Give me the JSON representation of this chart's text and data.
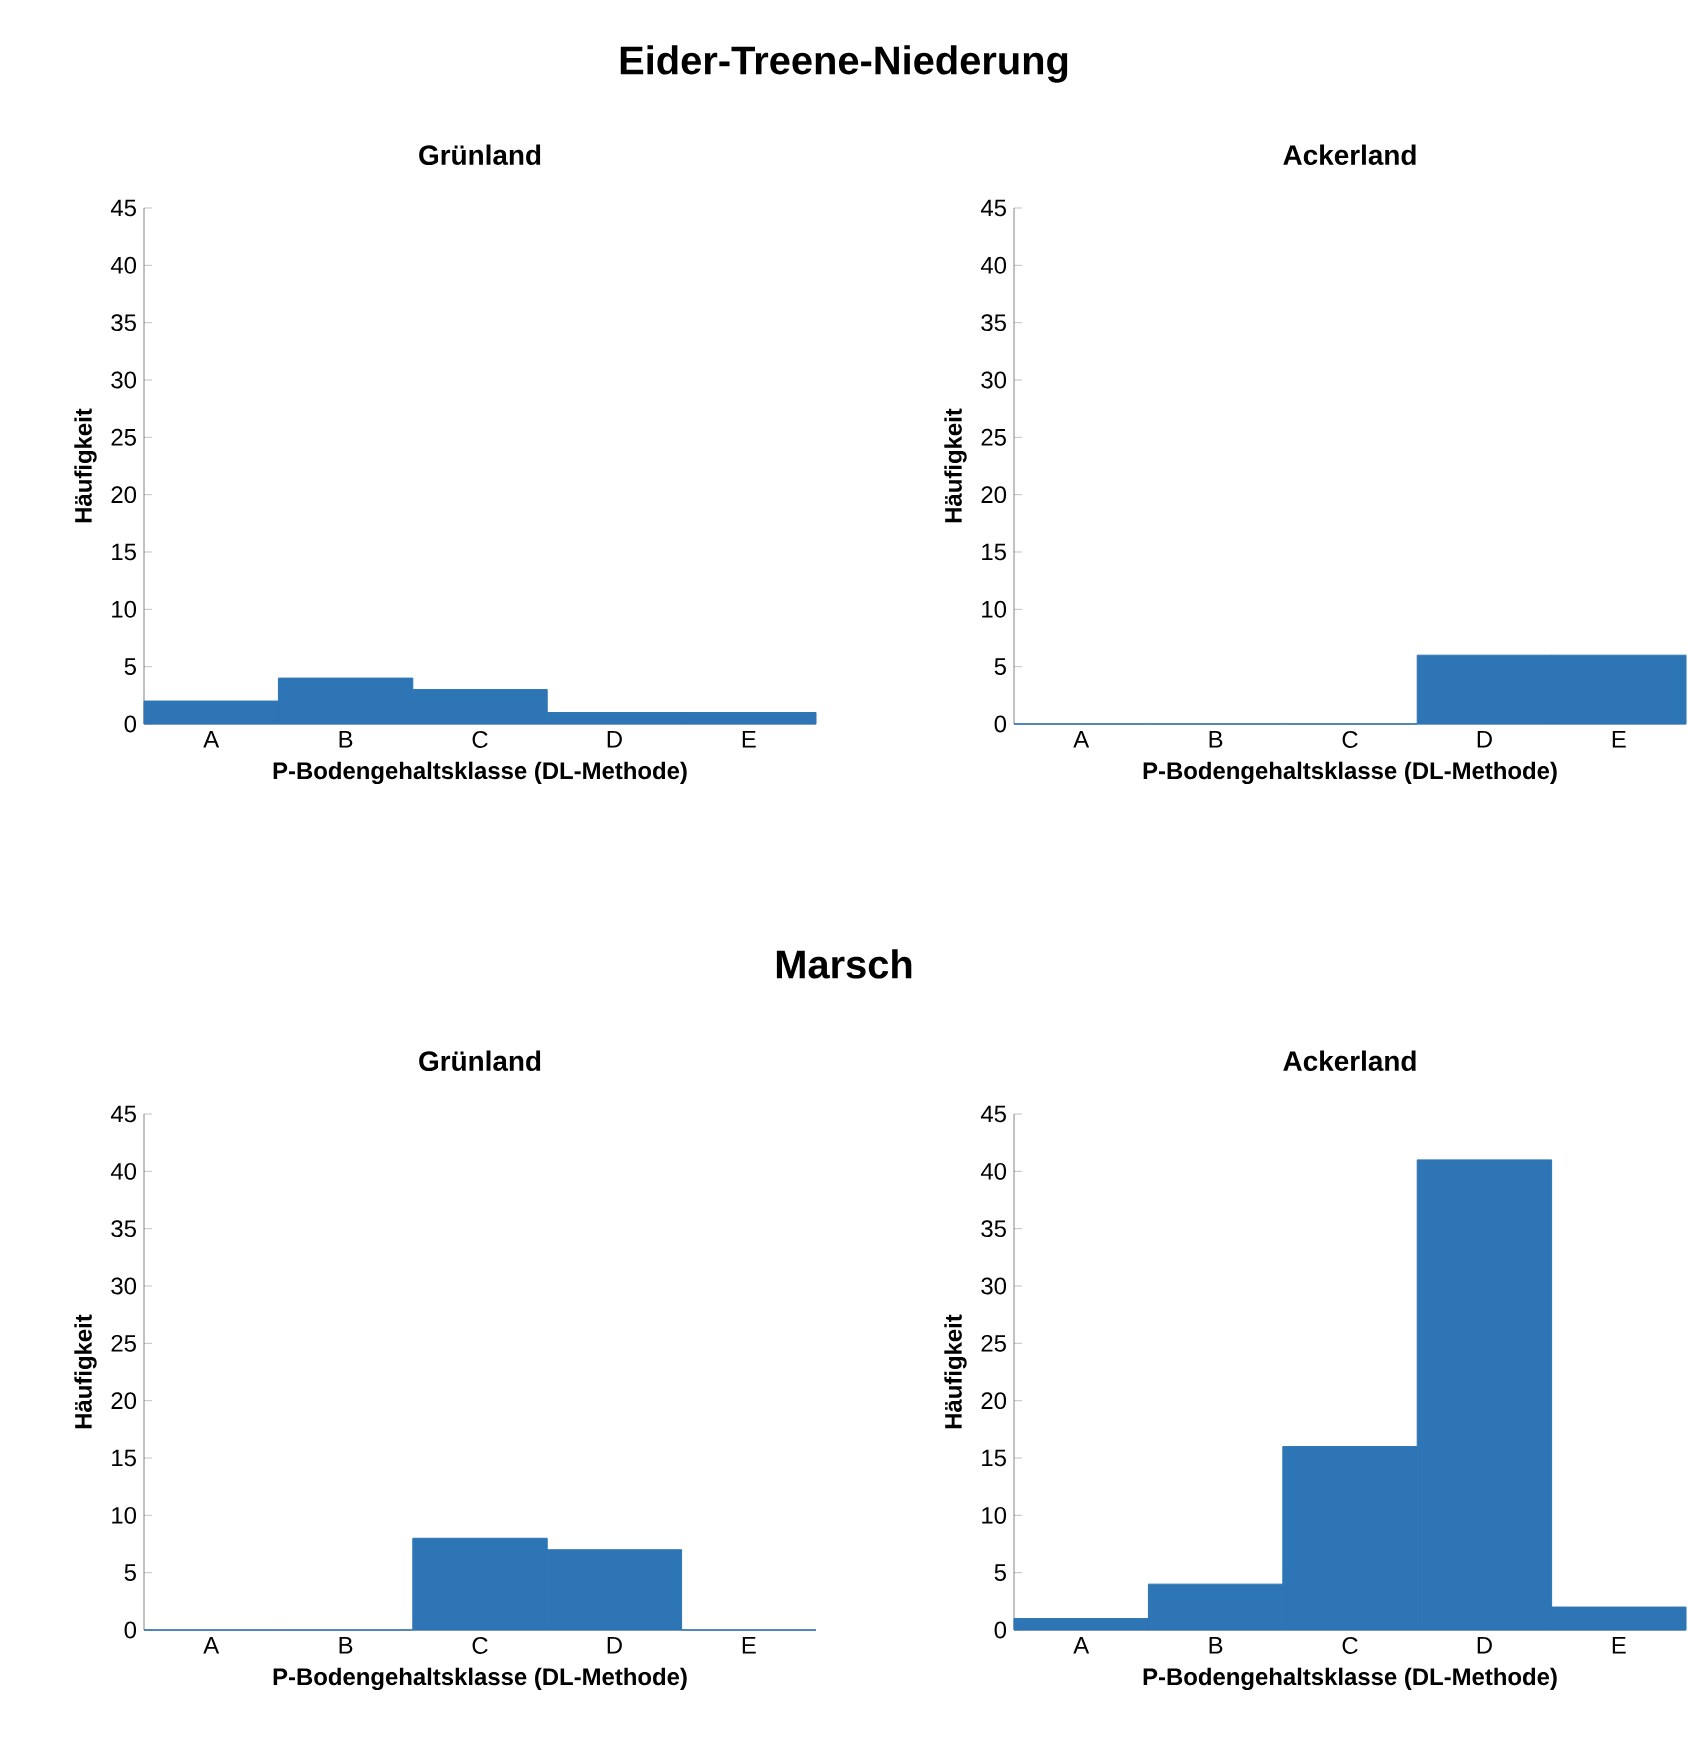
{
  "chart_data": [
    {
      "type": "other",
      "title": "Eider-Treene-Niederung"
    },
    {
      "type": "bar",
      "title": "Grünland",
      "xlabel": "P-Bodengehaltsklasse (DL-Methode)",
      "ylabel": "Häufigkeit",
      "categories": [
        "A",
        "B",
        "C",
        "D",
        "E"
      ],
      "values": [
        2,
        4,
        3,
        1,
        1
      ],
      "color": "#2e75b6",
      "ylim": [
        0,
        45
      ],
      "yticks": [
        0,
        5,
        10,
        15,
        20,
        25,
        30,
        35,
        40,
        45
      ],
      "grid": false
    },
    {
      "type": "bar",
      "title": "Ackerland",
      "xlabel": "P-Bodengehaltsklasse (DL-Methode)",
      "ylabel": "Häufigkeit",
      "categories": [
        "A",
        "B",
        "C",
        "D",
        "E"
      ],
      "values": [
        0,
        0,
        0,
        6,
        6
      ],
      "color": "#2e75b6",
      "ylim": [
        0,
        45
      ],
      "yticks": [
        0,
        5,
        10,
        15,
        20,
        25,
        30,
        35,
        40,
        45
      ],
      "grid": false
    },
    {
      "type": "other",
      "title": "Marsch"
    },
    {
      "type": "bar",
      "title": "Grünland",
      "xlabel": "P-Bodengehaltsklasse (DL-Methode)",
      "ylabel": "Häufigkeit",
      "categories": [
        "A",
        "B",
        "C",
        "D",
        "E"
      ],
      "values": [
        0,
        0,
        8,
        7,
        0
      ],
      "color": "#2e75b6",
      "ylim": [
        0,
        45
      ],
      "yticks": [
        0,
        5,
        10,
        15,
        20,
        25,
        30,
        35,
        40,
        45
      ],
      "grid": false
    },
    {
      "type": "bar",
      "title": "Ackerland",
      "xlabel": "P-Bodengehaltsklasse (DL-Methode)",
      "ylabel": "Häufigkeit",
      "categories": [
        "A",
        "B",
        "C",
        "D",
        "E"
      ],
      "values": [
        1,
        4,
        16,
        41,
        2
      ],
      "color": "#2e75b6",
      "ylim": [
        0,
        45
      ],
      "yticks": [
        0,
        5,
        10,
        15,
        20,
        25,
        30,
        35,
        40,
        45
      ],
      "grid": false
    }
  ]
}
